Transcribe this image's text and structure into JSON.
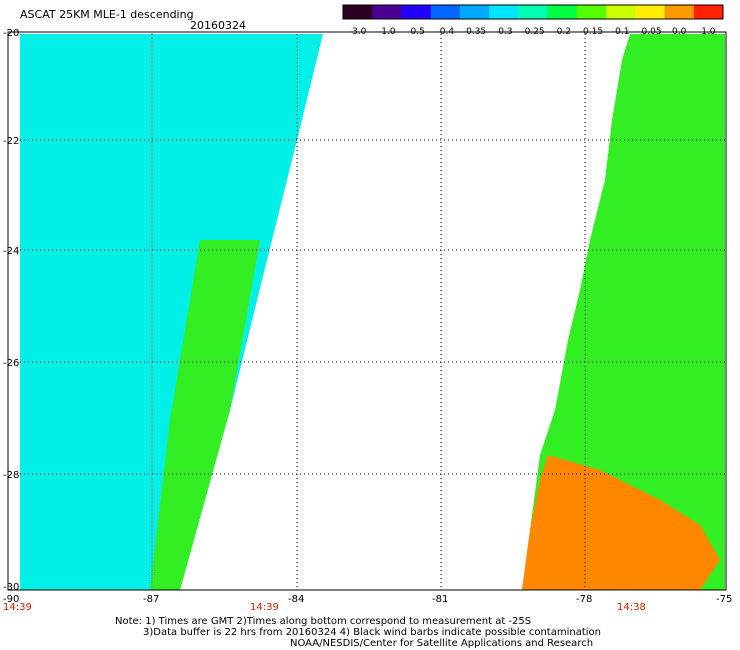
{
  "header": {
    "title": "ASCAT 25KM MLE-1 descending",
    "date": "20160324"
  },
  "colorbar": {
    "labels": [
      "-3.0",
      "-1.0",
      "-0.5",
      "-0.4",
      "-0.35",
      "-0.3",
      "-0.25",
      "-0.2",
      "-0.15",
      "-0.1",
      "-0.05",
      "0.0",
      "1.0"
    ],
    "colors": [
      "#2a0020",
      "#4a0090",
      "#2200ff",
      "#0066ff",
      "#00aaff",
      "#00e6ff",
      "#00ffb0",
      "#00ff44",
      "#55ff00",
      "#ccff00",
      "#ffee00",
      "#ff9900",
      "#ff2200"
    ]
  },
  "map": {
    "lat_labels": [
      "-20",
      "-22",
      "-24",
      "-26",
      "-28",
      "-30"
    ],
    "lon_labels": [
      "-90",
      "-87",
      "-84",
      "-81",
      "-78",
      "-75"
    ],
    "time_labels": [
      "14:39",
      "14:39",
      "14:38"
    ],
    "time_color": "#cc2200",
    "swath_left_color": "#00f0e8",
    "swath_right_color": "#33ee22",
    "contamination_color": "#ff8800"
  },
  "notes": {
    "line1": "Note: 1) Times are GMT 2)Times along bottom correspond to measurement at -25S",
    "line2": "3)Data buffer is 22 hrs from 20160324 4) Black wind barbs indicate possible contamination",
    "line3": "NOAA/NESDIS/Center for Satellite Applications and Research"
  }
}
